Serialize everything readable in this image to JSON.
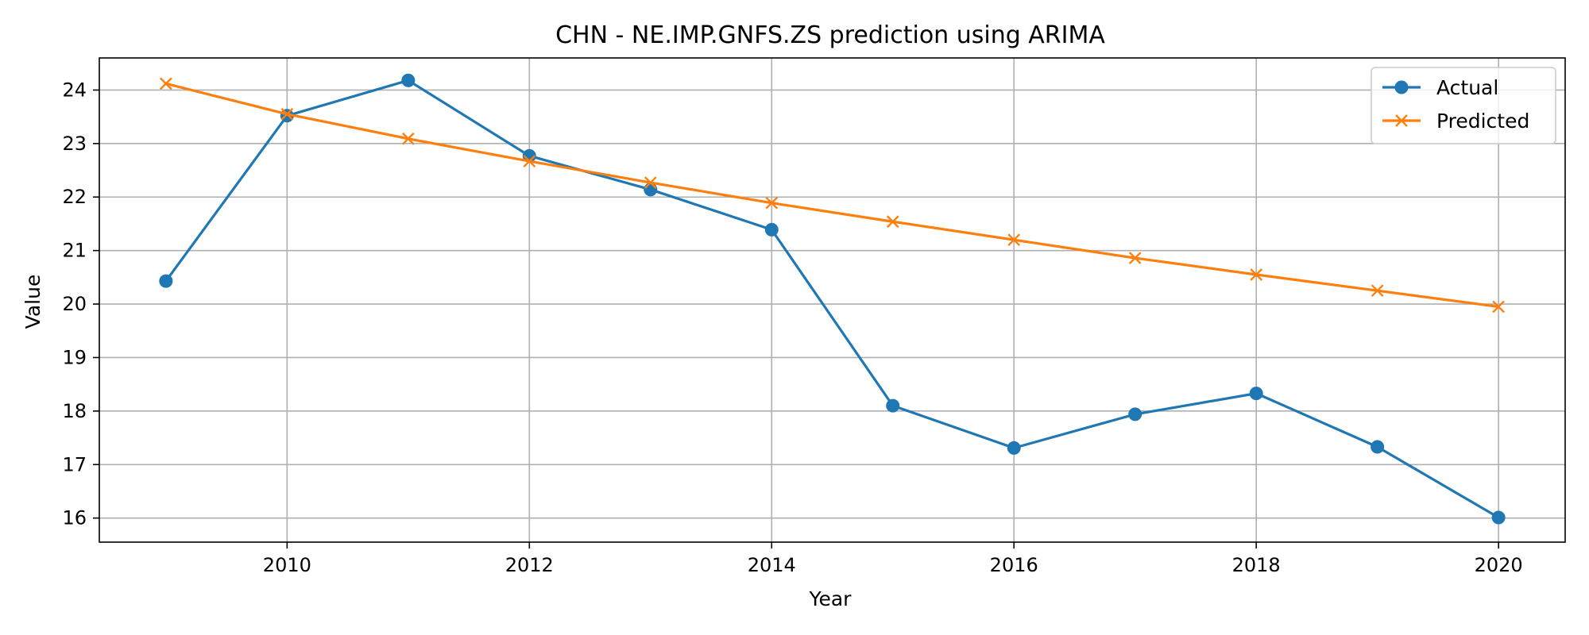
{
  "chart_data": {
    "type": "line",
    "title": "CHN - NE.IMP.GNFS.ZS prediction using ARIMA",
    "xlabel": "Year",
    "ylabel": "Value",
    "x": [
      2009,
      2010,
      2011,
      2012,
      2013,
      2014,
      2015,
      2016,
      2017,
      2018,
      2019,
      2020
    ],
    "xlim": [
      2008.45,
      2020.55
    ],
    "ylim": [
      15.55,
      24.6
    ],
    "xticks": [
      2010,
      2012,
      2014,
      2016,
      2018,
      2020
    ],
    "xtick_labels": [
      "2010",
      "2012",
      "2014",
      "2016",
      "2018",
      "2020"
    ],
    "yticks": [
      16,
      17,
      18,
      19,
      20,
      21,
      22,
      23,
      24
    ],
    "ytick_labels": [
      "16",
      "17",
      "18",
      "19",
      "20",
      "21",
      "22",
      "23",
      "24"
    ],
    "grid": true,
    "legend_position": "top-right",
    "series": [
      {
        "name": "Actual",
        "color": "#1f77b4",
        "marker": "circle",
        "values": [
          20.43,
          23.52,
          24.18,
          22.77,
          22.14,
          21.39,
          18.1,
          17.31,
          17.94,
          18.33,
          17.33,
          16.01
        ]
      },
      {
        "name": "Predicted",
        "color": "#ff7f0e",
        "marker": "x",
        "values": [
          24.12,
          23.55,
          23.09,
          22.67,
          22.27,
          21.89,
          21.54,
          21.2,
          20.86,
          20.55,
          20.25,
          19.95
        ]
      }
    ]
  }
}
